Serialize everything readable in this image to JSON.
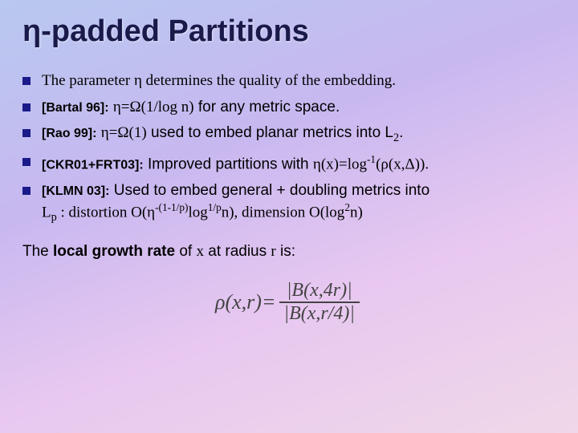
{
  "slide": {
    "title": "η-padded Partitions",
    "title_color": "#1a1a4a",
    "title_fontsize": 38,
    "background_gradient": [
      "#b8c8f0",
      "#c8b8f0",
      "#e8c8f0",
      "#f0d8e8"
    ],
    "bullet_marker_color": "#1a1a8a",
    "body_fontsize": 19,
    "bullets": [
      {
        "text": "The parameter η determines the quality of the embedding."
      },
      {
        "cite": "[Bartal 96]:",
        "formula": "η=Ω(1/log n)",
        "tail": " for any metric space."
      },
      {
        "cite": "[Rao 99]:",
        "formula": "η=Ω(1)",
        "tail_a": " used to embed planar metrics  into L",
        "tail_sub": "2",
        "tail_b": "."
      },
      {
        "cite": "[CKR01+FRT03]:",
        "tail_a": " Improved partitions with ",
        "formula": "η(x)=log",
        "sup": "-1",
        "tail_b": "(ρ(x,Δ))."
      },
      {
        "cite": "[KLMN 03]:",
        "line1_a": " Used to embed general + doubling metrics into",
        "line2_a": "L",
        "line2_sub": "p",
        "line2_b": " : distortion O(η",
        "line2_sup1": "-(1-1/p)",
        "line2_c": "log",
        "line2_sup2": "1/p",
        "line2_d": "n), dimension O(log",
        "line2_sup3": "2",
        "line2_e": "n)"
      }
    ],
    "footer": {
      "prefix": "The ",
      "bold": "local growth rate",
      "mid": " of ",
      "var1": "x",
      "mid2": " at radius ",
      "var2": "r",
      "suffix": " is:"
    },
    "formula": {
      "lhs": "ρ(x,r)=",
      "num_a": "|B(x,4r)|",
      "den_a": "|B(x,r/4)|",
      "color": "#444444",
      "fontsize": 26
    }
  }
}
